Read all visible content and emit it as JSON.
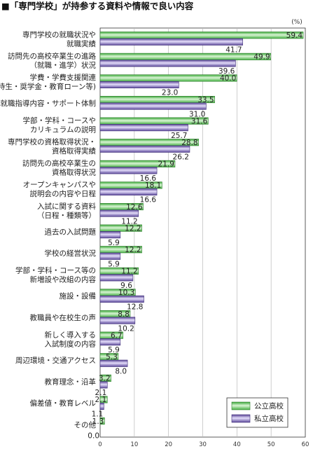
{
  "chart_data": {
    "type": "bar",
    "orientation": "horizontal",
    "title": "■「専門学校」が持参する資料や情報で良い内容",
    "unit_label": "(%)",
    "xlim": [
      0,
      60
    ],
    "xticks": [
      "0",
      "10",
      "20",
      "30",
      "40",
      "50",
      "60"
    ],
    "grid": true,
    "legend_position": "bottom-right",
    "categories": [
      [
        "専門学校の就職状況や",
        "就職実績"
      ],
      [
        "訪問先の高校卒業生の進路",
        "（就職・進学）状況"
      ],
      [
        "学費・学費支援関連",
        "(特待生・奨学金・教育ローン等)"
      ],
      [
        "就職指導内容・サポート体制"
      ],
      [
        "学部・学科・コースや",
        "カリキュラムの説明"
      ],
      [
        "専門学校の資格取得状況・",
        "資格取得実績"
      ],
      [
        "訪問先の高校卒業生の",
        "資格取得状況"
      ],
      [
        "オープンキャンパスや",
        "説明会の内容や日程"
      ],
      [
        "入試に関する資料",
        "（日程・種類等）"
      ],
      [
        "過去の入試問題"
      ],
      [
        "学校の経営状況"
      ],
      [
        "学部・学科・コース等の",
        "新増設や改組の内容"
      ],
      [
        "施設・設備"
      ],
      [
        "教職員や在校生の声"
      ],
      [
        "新しく導入する",
        "入試制度の内容"
      ],
      [
        "周辺環境・交通アクセス"
      ],
      [
        "教育理念・沿革"
      ],
      [
        "偏差値・教育レベル"
      ],
      [
        "その他"
      ]
    ],
    "series": [
      {
        "name": "公立高校",
        "color": "#4dc24a",
        "values": [
          59.4,
          49.9,
          40.0,
          33.5,
          31.6,
          28.8,
          21.9,
          18.1,
          12.6,
          12.2,
          12.2,
          11.2,
          10.3,
          8.8,
          6.7,
          5.3,
          3.2,
          2.1,
          1.3
        ],
        "labels": [
          "59.4",
          "49.9",
          "40.0",
          "33.5",
          "31.6",
          "28.8",
          "21.9",
          "18.1",
          "12.6",
          "12.2",
          "12.2",
          "11.2",
          "10.3",
          "8.8",
          "6.7",
          "5.3",
          "3.2",
          "2.1",
          "1.3"
        ]
      },
      {
        "name": "私立高校",
        "color": "#6b56a8",
        "values": [
          41.7,
          39.6,
          23.0,
          31.0,
          25.7,
          26.2,
          16.6,
          16.6,
          11.2,
          5.9,
          5.9,
          9.6,
          12.8,
          10.2,
          5.9,
          8.0,
          2.1,
          1.1,
          0.0
        ],
        "labels": [
          "41.7",
          "39.6",
          "23.0",
          "31.0",
          "25.7",
          "26.2",
          "16.6",
          "16.6",
          "11.2",
          "5.9",
          "5.9",
          "9.6",
          "12.8",
          "10.2",
          "5.9",
          "8.0",
          "2.1",
          "1.1",
          "0.0"
        ]
      }
    ]
  }
}
